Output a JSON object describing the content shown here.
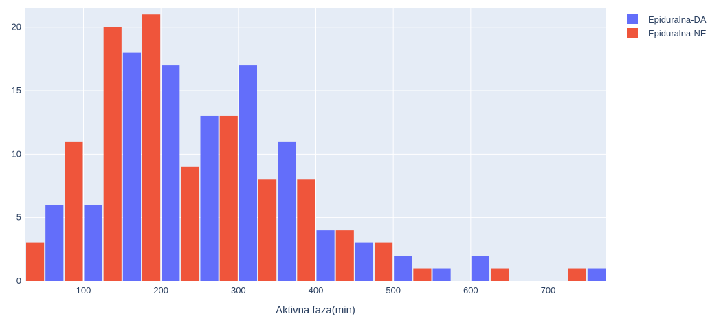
{
  "chart_data": {
    "type": "bar",
    "bin_width": 25,
    "x_start": 25,
    "x_range": [
      25,
      775
    ],
    "y_range": [
      0,
      21.5
    ],
    "x_ticks": [
      100,
      200,
      300,
      400,
      500,
      600,
      700
    ],
    "y_ticks": [
      0,
      5,
      10,
      15,
      20
    ],
    "xlabel": "Aktivna faza(min)",
    "ylabel": "",
    "grid": true,
    "legend_position": "top-right",
    "series": [
      {
        "name": "Epiduralna-DA",
        "color": "#636efa",
        "bins": [
          {
            "x0": 50,
            "value": 6
          },
          {
            "x0": 100,
            "value": 6
          },
          {
            "x0": 150,
            "value": 18
          },
          {
            "x0": 200,
            "value": 17
          },
          {
            "x0": 250,
            "value": 13
          },
          {
            "x0": 300,
            "value": 17
          },
          {
            "x0": 350,
            "value": 11
          },
          {
            "x0": 400,
            "value": 4
          },
          {
            "x0": 450,
            "value": 3
          },
          {
            "x0": 500,
            "value": 2
          },
          {
            "x0": 550,
            "value": 1
          },
          {
            "x0": 600,
            "value": 2
          },
          {
            "x0": 750,
            "value": 1
          }
        ]
      },
      {
        "name": "Epiduralna-NE",
        "color": "#ef553b",
        "bins": [
          {
            "x0": 25,
            "value": 3
          },
          {
            "x0": 75,
            "value": 11
          },
          {
            "x0": 125,
            "value": 20
          },
          {
            "x0": 175,
            "value": 21
          },
          {
            "x0": 225,
            "value": 9
          },
          {
            "x0": 275,
            "value": 13
          },
          {
            "x0": 325,
            "value": 8
          },
          {
            "x0": 375,
            "value": 8
          },
          {
            "x0": 425,
            "value": 4
          },
          {
            "x0": 475,
            "value": 3
          },
          {
            "x0": 525,
            "value": 1
          },
          {
            "x0": 625,
            "value": 1
          },
          {
            "x0": 725,
            "value": 1
          }
        ]
      }
    ]
  }
}
